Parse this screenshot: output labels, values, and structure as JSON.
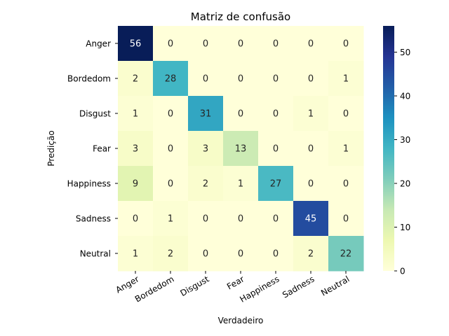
{
  "chart_data": {
    "type": "heatmap",
    "title": "Matriz de confusão",
    "xlabel": "Verdadeiro",
    "ylabel": "Predição",
    "x_categories": [
      "Anger",
      "Bordedom",
      "Disgust",
      "Fear",
      "Happiness",
      "Sadness",
      "Neutral"
    ],
    "y_categories": [
      "Anger",
      "Bordedom",
      "Disgust",
      "Fear",
      "Happiness",
      "Sadness",
      "Neutral"
    ],
    "values": [
      [
        56,
        0,
        0,
        0,
        0,
        0,
        0
      ],
      [
        2,
        28,
        0,
        0,
        0,
        0,
        1
      ],
      [
        1,
        0,
        31,
        0,
        0,
        1,
        0
      ],
      [
        3,
        0,
        3,
        13,
        0,
        0,
        1
      ],
      [
        9,
        0,
        2,
        1,
        27,
        0,
        0
      ],
      [
        0,
        1,
        0,
        0,
        0,
        45,
        0
      ],
      [
        1,
        2,
        0,
        0,
        0,
        2,
        22
      ]
    ],
    "colorbar": {
      "min": 0,
      "max": 56,
      "ticks": [
        0,
        10,
        20,
        30,
        40,
        50
      ]
    },
    "colormap": "YlGnBu",
    "colormap_stops": [
      "#ffffd9",
      "#edf8b1",
      "#c7e9b4",
      "#7fcdbb",
      "#41b6c4",
      "#1d91c0",
      "#225ea8",
      "#253494",
      "#081d58"
    ],
    "grid": false
  }
}
